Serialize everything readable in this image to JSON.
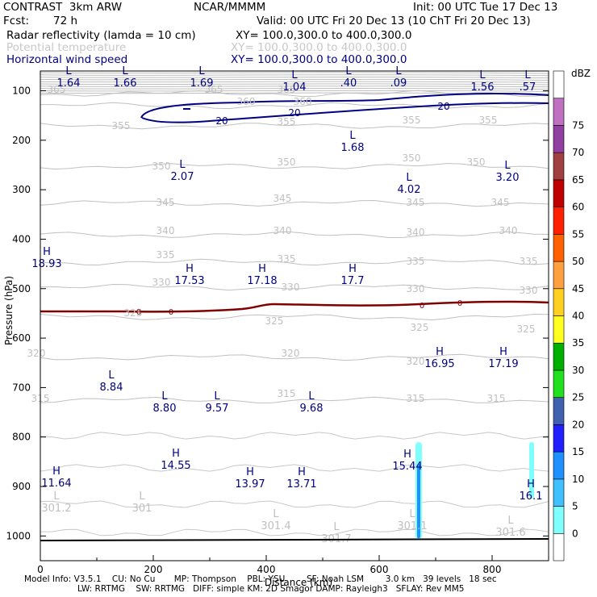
{
  "header": {
    "model": "CONTRAST  3km ARW",
    "center": "NCAR/MMMM",
    "init": "Init: 00 UTC Tue 17 Dec 13",
    "fcst_label": "Fcst:",
    "fcst_value": "72 h",
    "valid": "Valid: 00 UTC Fri 20 Dec 13 (10 ChT Fri 20 Dec 13)",
    "fields": [
      {
        "name": "Radar reflectivity (lamda = 10 cm)",
        "xy": "XY= 100.0,300.0 to 400.0,300.0",
        "color": "#000000"
      },
      {
        "name": "Potential temperature",
        "xy": "XY= 100.0,300.0 to 400.0,300.0",
        "color": "#c8c8c8"
      },
      {
        "name": "Horizontal wind speed",
        "xy": "XY= 100.0,300.0 to 400.0,300.0",
        "color": "#000080"
      }
    ]
  },
  "footer": {
    "line1": "Model Info: V3.5.1    CU: No Cu       MP: Thompson    PBL: YSU        SF: Noah LSM        3.0 km   39 levels   18 sec",
    "line2": "LW: RRTMG    SW: RRTMG   DIFF: simple KM: 2D Smagor DAMP: Rayleigh3   SFLAY: Rev MM5"
  },
  "chart_data": {
    "type": "cross-section",
    "xlabel": "Distance (km)",
    "ylabel": "Pressure (hPa)",
    "xlim": [
      0,
      900
    ],
    "ylim": [
      1050,
      60
    ],
    "xticks": [
      0,
      200,
      400,
      600,
      800
    ],
    "yticks": [
      100,
      200,
      300,
      400,
      500,
      600,
      700,
      800,
      900,
      1000
    ],
    "colorbar": {
      "label": "dBZ",
      "levels": [
        0,
        5,
        10,
        15,
        20,
        25,
        30,
        35,
        40,
        45,
        50,
        55,
        60,
        65,
        70,
        75
      ],
      "colors": [
        "#ffffff",
        "#80ffff",
        "#40c0ff",
        "#1e90ff",
        "#2020ff",
        "#4060b0",
        "#20e020",
        "#00b000",
        "#ffff20",
        "#ffd020",
        "#ffa040",
        "#ff6000",
        "#ff2000",
        "#c00000",
        "#a04040",
        "#9040a0",
        "#c070c0",
        "#ffffff"
      ]
    },
    "theta_contours": [
      {
        "value": 365,
        "labels": [
          [
            70,
            115
          ],
          [
            265,
            115
          ],
          [
            355,
            115
          ]
        ]
      },
      {
        "value": 360,
        "labels": [
          [
            305,
            130
          ],
          [
            375,
            130
          ]
        ]
      },
      {
        "value": 355,
        "labels": [
          [
            150,
            160
          ],
          [
            355,
            155
          ],
          [
            510,
            153
          ],
          [
            605,
            153
          ]
        ]
      },
      {
        "value": 350,
        "labels": [
          [
            200,
            210
          ],
          [
            355,
            205
          ],
          [
            510,
            200
          ],
          [
            590,
            205
          ]
        ]
      },
      {
        "value": 345,
        "labels": [
          [
            205,
            255
          ],
          [
            350,
            250
          ],
          [
            515,
            255
          ],
          [
            620,
            255
          ]
        ]
      },
      {
        "value": 340,
        "labels": [
          [
            205,
            290
          ],
          [
            350,
            290
          ],
          [
            515,
            292
          ],
          [
            630,
            290
          ]
        ]
      },
      {
        "value": 335,
        "labels": [
          [
            205,
            320
          ],
          [
            355,
            325
          ],
          [
            515,
            328
          ],
          [
            655,
            328
          ]
        ]
      },
      {
        "value": 330,
        "labels": [
          [
            200,
            354
          ],
          [
            360,
            360
          ],
          [
            515,
            362
          ],
          [
            655,
            364
          ]
        ]
      },
      {
        "value": 325,
        "labels": [
          [
            165,
            392
          ],
          [
            340,
            402
          ],
          [
            520,
            410
          ],
          [
            652,
            412
          ]
        ]
      },
      {
        "value": 320,
        "labels": [
          [
            45,
            442
          ],
          [
            360,
            442
          ],
          [
            515,
            452
          ]
        ]
      },
      {
        "value": 315,
        "labels": [
          [
            50,
            498
          ],
          [
            355,
            492
          ],
          [
            515,
            498
          ],
          [
            615,
            498
          ]
        ]
      }
    ],
    "theta_values": [
      {
        "x": 0,
        "values": [
          365,
          360,
          355,
          350,
          345,
          340,
          335,
          330,
          325,
          320,
          315
        ]
      }
    ],
    "wind_contours": [
      {
        "value": 20,
        "labels": [
          [
            275,
            150
          ],
          [
            365,
            140
          ],
          [
            550,
            132
          ]
        ]
      }
    ],
    "zero_contour": {
      "value": 0,
      "labels": [
        [
          172,
          386
        ],
        [
          212,
          386
        ],
        [
          523,
          378
        ],
        [
          570,
          375
        ]
      ]
    },
    "extrema": [
      {
        "type": "L",
        "value": "1.64"
      },
      {
        "type": "L",
        "value": "1.66"
      },
      {
        "type": "L",
        "value": "1.69"
      },
      {
        "type": "L",
        "value": "1.04"
      },
      {
        "type": "L",
        "value": ".40"
      },
      {
        "type": "L",
        "value": ".09"
      },
      {
        "type": "L",
        "value": "1.56"
      },
      {
        "type": "L",
        "value": ".57"
      },
      {
        "type": "L",
        "value": "1.68"
      },
      {
        "type": "L",
        "value": "2.07"
      },
      {
        "type": "L",
        "value": "4.02"
      },
      {
        "type": "L",
        "value": "3.20"
      },
      {
        "type": "H",
        "value": "18.93"
      },
      {
        "type": "H",
        "value": "17.53"
      },
      {
        "type": "H",
        "value": "17.18"
      },
      {
        "type": "H",
        "value": "17.7"
      },
      {
        "type": "H",
        "value": "16.95"
      },
      {
        "type": "H",
        "value": "17.19"
      },
      {
        "type": "L",
        "value": "8.84"
      },
      {
        "type": "L",
        "value": "8.80"
      },
      {
        "type": "L",
        "value": "9.57"
      },
      {
        "type": "L",
        "value": "9.68"
      },
      {
        "type": "H",
        "value": "11.64"
      },
      {
        "type": "H",
        "value": "14.55"
      },
      {
        "type": "H",
        "value": "13.97"
      },
      {
        "type": "H",
        "value": "13.71"
      },
      {
        "type": "H",
        "value": "15.44"
      },
      {
        "type": "H",
        "value": "16.1"
      },
      {
        "type": "L",
        "value": "301.2"
      },
      {
        "type": "L",
        "value": "301"
      },
      {
        "type": "L",
        "value": "301.4"
      },
      {
        "type": "L",
        "value": "301.7"
      },
      {
        "type": "L",
        "value": "301.1"
      },
      {
        "type": "L",
        "value": "301.6"
      }
    ]
  }
}
